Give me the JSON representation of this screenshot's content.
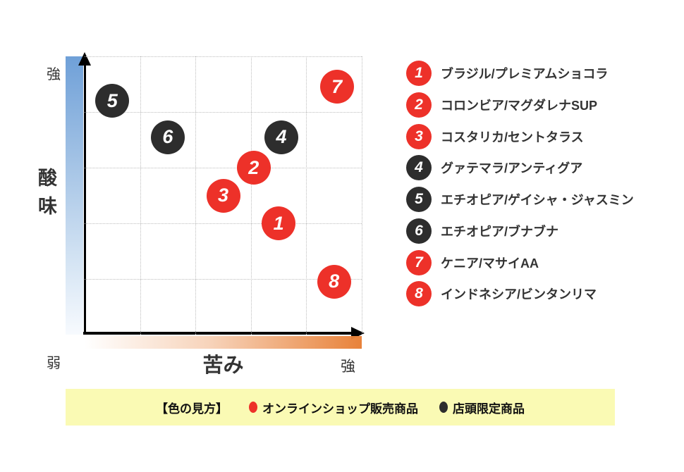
{
  "colors": {
    "online": "#ED3129",
    "store": "#2D2D2D",
    "banner_bg": "#FAFAB4",
    "y_gradient_top": "#6FA0D8",
    "x_gradient_end": "#E8823A"
  },
  "axes": {
    "y_title": "酸味",
    "x_title": "苦み",
    "y_max_label": "強",
    "x_max_label": "強",
    "origin_label": "弱"
  },
  "banner": {
    "heading": "【色の見方】",
    "online_label": "オンラインショップ販売商品",
    "store_label": "店頭限定商品"
  },
  "chart_data": {
    "type": "scatter",
    "title": "",
    "xlabel": "苦み",
    "ylabel": "酸味",
    "x_axis_endpoints": {
      "min": "弱",
      "max": "強"
    },
    "y_axis_endpoints": {
      "min": "弱",
      "max": "強"
    },
    "xlim": [
      0,
      10
    ],
    "ylim": [
      0,
      10
    ],
    "grid": "5x5 dotted",
    "legend_position": "right",
    "channels": {
      "online": {
        "label": "オンラインショップ販売商品",
        "color": "#ED3129"
      },
      "store": {
        "label": "店頭限定商品",
        "color": "#2D2D2D"
      }
    },
    "points": [
      {
        "num": 1,
        "label": "ブラジル/プレミアムショコラ",
        "x": 7.0,
        "y": 4.0,
        "channel": "online"
      },
      {
        "num": 2,
        "label": "コロンビア/マグダレナSUP",
        "x": 6.1,
        "y": 6.0,
        "channel": "online"
      },
      {
        "num": 3,
        "label": "コスタリカ/セントタラス",
        "x": 5.0,
        "y": 5.0,
        "channel": "online"
      },
      {
        "num": 4,
        "label": "グァテマラ/アンティグア",
        "x": 7.1,
        "y": 7.1,
        "channel": "store"
      },
      {
        "num": 5,
        "label": "エチオピア/ゲイシャ・ジャスミン",
        "x": 1.0,
        "y": 8.4,
        "channel": "store"
      },
      {
        "num": 6,
        "label": "エチオピア/ブナブナ",
        "x": 3.0,
        "y": 7.1,
        "channel": "store"
      },
      {
        "num": 7,
        "label": "ケニア/マサイAA",
        "x": 9.1,
        "y": 8.9,
        "channel": "online"
      },
      {
        "num": 8,
        "label": "インドネシア/ビンタンリマ",
        "x": 9.0,
        "y": 1.9,
        "channel": "online"
      }
    ]
  }
}
